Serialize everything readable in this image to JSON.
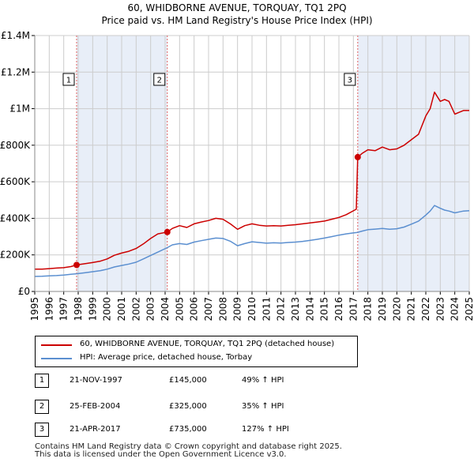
{
  "title_line1": "60, WHIDBORNE AVENUE, TORQUAY, TQ1 2PQ",
  "title_line2": "Price paid vs. HM Land Registry's House Price Index (HPI)",
  "colors": {
    "property": "#cc0000",
    "hpi": "#5b8fd0",
    "shade": "#e8eef8",
    "marker_line": "#e06060",
    "grid": "#cccccc"
  },
  "chart_data": {
    "type": "line",
    "title": "Price paid vs. HM Land Registry's House Price Index (HPI)",
    "xlabel": "",
    "ylabel": "",
    "xlim": [
      1995,
      2025
    ],
    "ylim": [
      0,
      1400000
    ],
    "y_ticks": [
      {
        "value": 0,
        "label": "£0"
      },
      {
        "value": 200000,
        "label": "£200K"
      },
      {
        "value": 400000,
        "label": "£400K"
      },
      {
        "value": 600000,
        "label": "£600K"
      },
      {
        "value": 800000,
        "label": "£800K"
      },
      {
        "value": 1000000,
        "label": "£1M"
      },
      {
        "value": 1200000,
        "label": "£1.2M"
      },
      {
        "value": 1400000,
        "label": "£1.4M"
      }
    ],
    "x_ticks": [
      "1995",
      "1996",
      "1997",
      "1998",
      "1999",
      "2000",
      "2001",
      "2002",
      "2003",
      "2004",
      "2005",
      "2006",
      "2007",
      "2008",
      "2009",
      "2010",
      "2011",
      "2012",
      "2013",
      "2014",
      "2015",
      "2016",
      "2017",
      "2018",
      "2019",
      "2020",
      "2021",
      "2022",
      "2023",
      "2024",
      "2025"
    ],
    "shaded_intervals": [
      [
        1997.89,
        2004.15
      ],
      [
        2017.3,
        2025
      ]
    ],
    "series": [
      {
        "name": "60, WHIDBORNE AVENUE, TORQUAY, TQ1 2PQ (detached house)",
        "x": [
          1995,
          1995.5,
          1996,
          1996.5,
          1997,
          1997.5,
          1997.89,
          1998.5,
          1999,
          1999.5,
          2000,
          2000.5,
          2001,
          2001.5,
          2002,
          2002.5,
          2003,
          2003.5,
          2004.15,
          2004.5,
          2005,
          2005.5,
          2006,
          2006.5,
          2007,
          2007.5,
          2008,
          2008.5,
          2009,
          2009.5,
          2010,
          2010.5,
          2011,
          2011.5,
          2012,
          2012.5,
          2013,
          2013.5,
          2014,
          2014.5,
          2015,
          2015.5,
          2016,
          2016.5,
          2017.2,
          2017.3,
          2017.6,
          2018,
          2018.5,
          2019,
          2019.5,
          2020,
          2020.5,
          2021,
          2021.5,
          2022,
          2022.3,
          2022.6,
          2023,
          2023.3,
          2023.6,
          2024,
          2024.3,
          2024.6,
          2025
        ],
        "values": [
          122000,
          122000,
          125000,
          128000,
          130000,
          136000,
          145000,
          152000,
          158000,
          165000,
          178000,
          198000,
          210000,
          220000,
          235000,
          260000,
          290000,
          315000,
          325000,
          345000,
          360000,
          350000,
          370000,
          380000,
          388000,
          400000,
          395000,
          370000,
          340000,
          360000,
          370000,
          362000,
          358000,
          360000,
          358000,
          362000,
          365000,
          370000,
          375000,
          380000,
          385000,
          395000,
          405000,
          420000,
          450000,
          735000,
          755000,
          775000,
          770000,
          790000,
          775000,
          780000,
          800000,
          830000,
          860000,
          960000,
          1000000,
          1090000,
          1040000,
          1050000,
          1040000,
          970000,
          980000,
          990000,
          990000
        ]
      },
      {
        "name": "HPI: Average price, detached house, Torbay",
        "x": [
          1995,
          1995.5,
          1996,
          1996.5,
          1997,
          1997.5,
          1997.89,
          1998.5,
          1999,
          1999.5,
          2000,
          2000.5,
          2001,
          2001.5,
          2002,
          2002.5,
          2003,
          2003.5,
          2004.15,
          2004.5,
          2005,
          2005.5,
          2006,
          2006.5,
          2007,
          2007.5,
          2008,
          2008.5,
          2009,
          2009.5,
          2010,
          2010.5,
          2011,
          2011.5,
          2012,
          2012.5,
          2013,
          2013.5,
          2014,
          2014.5,
          2015,
          2015.5,
          2016,
          2016.5,
          2017,
          2017.3,
          2017.6,
          2018,
          2018.5,
          2019,
          2019.5,
          2020,
          2020.5,
          2021,
          2021.5,
          2022,
          2022.3,
          2022.6,
          2023,
          2023.3,
          2023.6,
          2024,
          2024.3,
          2024.6,
          2025
        ],
        "values": [
          82000,
          83000,
          85000,
          87000,
          90000,
          94000,
          97000,
          103000,
          108000,
          113000,
          122000,
          134000,
          142000,
          150000,
          160000,
          178000,
          197000,
          215000,
          240000,
          255000,
          262000,
          257000,
          270000,
          278000,
          285000,
          292000,
          290000,
          275000,
          250000,
          262000,
          272000,
          268000,
          264000,
          266000,
          265000,
          268000,
          270000,
          274000,
          279000,
          285000,
          292000,
          300000,
          308000,
          315000,
          320000,
          323000,
          330000,
          338000,
          341000,
          345000,
          340000,
          343000,
          352000,
          368000,
          385000,
          418000,
          440000,
          470000,
          455000,
          445000,
          440000,
          430000,
          435000,
          440000,
          442000
        ]
      }
    ],
    "sale_markers": [
      {
        "label": "1",
        "x": 1997.89,
        "value": 145000
      },
      {
        "label": "2",
        "x": 2004.15,
        "value": 325000
      },
      {
        "label": "3",
        "x": 2017.3,
        "value": 735000
      }
    ]
  },
  "legend": {
    "property_label": "60, WHIDBORNE AVENUE, TORQUAY, TQ1 2PQ (detached house)",
    "hpi_label": "HPI: Average price, detached house, Torbay"
  },
  "sales": [
    {
      "num": "1",
      "date": "21-NOV-1997",
      "price": "£145,000",
      "hpi": "49% ↑ HPI"
    },
    {
      "num": "2",
      "date": "25-FEB-2004",
      "price": "£325,000",
      "hpi": "35% ↑ HPI"
    },
    {
      "num": "3",
      "date": "21-APR-2017",
      "price": "£735,000",
      "hpi": "127% ↑ HPI"
    }
  ],
  "footer": {
    "line1": "Contains HM Land Registry data © Crown copyright and database right 2025.",
    "line2": "This data is licensed under the Open Government Licence v3.0."
  }
}
